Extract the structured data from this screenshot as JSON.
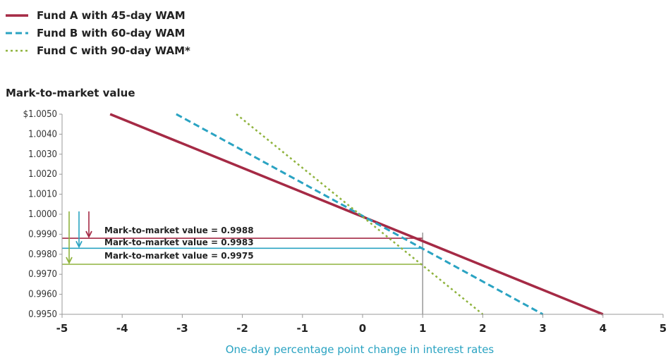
{
  "chart_data": {
    "type": "line",
    "ylabel": "Mark-to-market value",
    "xlabel": "One-day percentage point change in interest rates",
    "xlim": [
      -5,
      5
    ],
    "ylim": [
      0.995,
      1.005
    ],
    "x_ticks": [
      "-5",
      "-4",
      "-3",
      "-2",
      "-1",
      "0",
      "1",
      "2",
      "3",
      "4",
      "5"
    ],
    "y_ticks": [
      "$1.0050",
      "1.0040",
      "1.0030",
      "1.0020",
      "1.0010",
      "1.0000",
      "0.9990",
      "0.9980",
      "0.9970",
      "0.9960",
      "0.9950"
    ],
    "legend_position": "top-left",
    "series": [
      {
        "name": "Fund A with 45-day WAM",
        "color": "#a52a45",
        "dash": "solid",
        "x": [
          -4.2,
          4
        ],
        "y": [
          1.005,
          0.995
        ]
      },
      {
        "name": "Fund B with 60-day WAM",
        "color": "#2aa3c2",
        "dash": "dashed",
        "x": [
          -3.1,
          3
        ],
        "y": [
          1.005,
          0.995
        ]
      },
      {
        "name": "Fund C with 90-day WAM*",
        "color": "#8fb33d",
        "dash": "dotted",
        "x": [
          -2.1,
          2
        ],
        "y": [
          1.005,
          0.995
        ]
      }
    ],
    "annotations": [
      {
        "text": "Mark-to-market value = 0.9988",
        "value": 0.9988,
        "color": "#a52a45"
      },
      {
        "text": "Mark-to-market value = 0.9983",
        "value": 0.9983,
        "color": "#2aa3c2"
      },
      {
        "text": "Mark-to-market value = 0.9975",
        "value": 0.9975,
        "color": "#8fb33d"
      }
    ],
    "reference_x": 1
  }
}
